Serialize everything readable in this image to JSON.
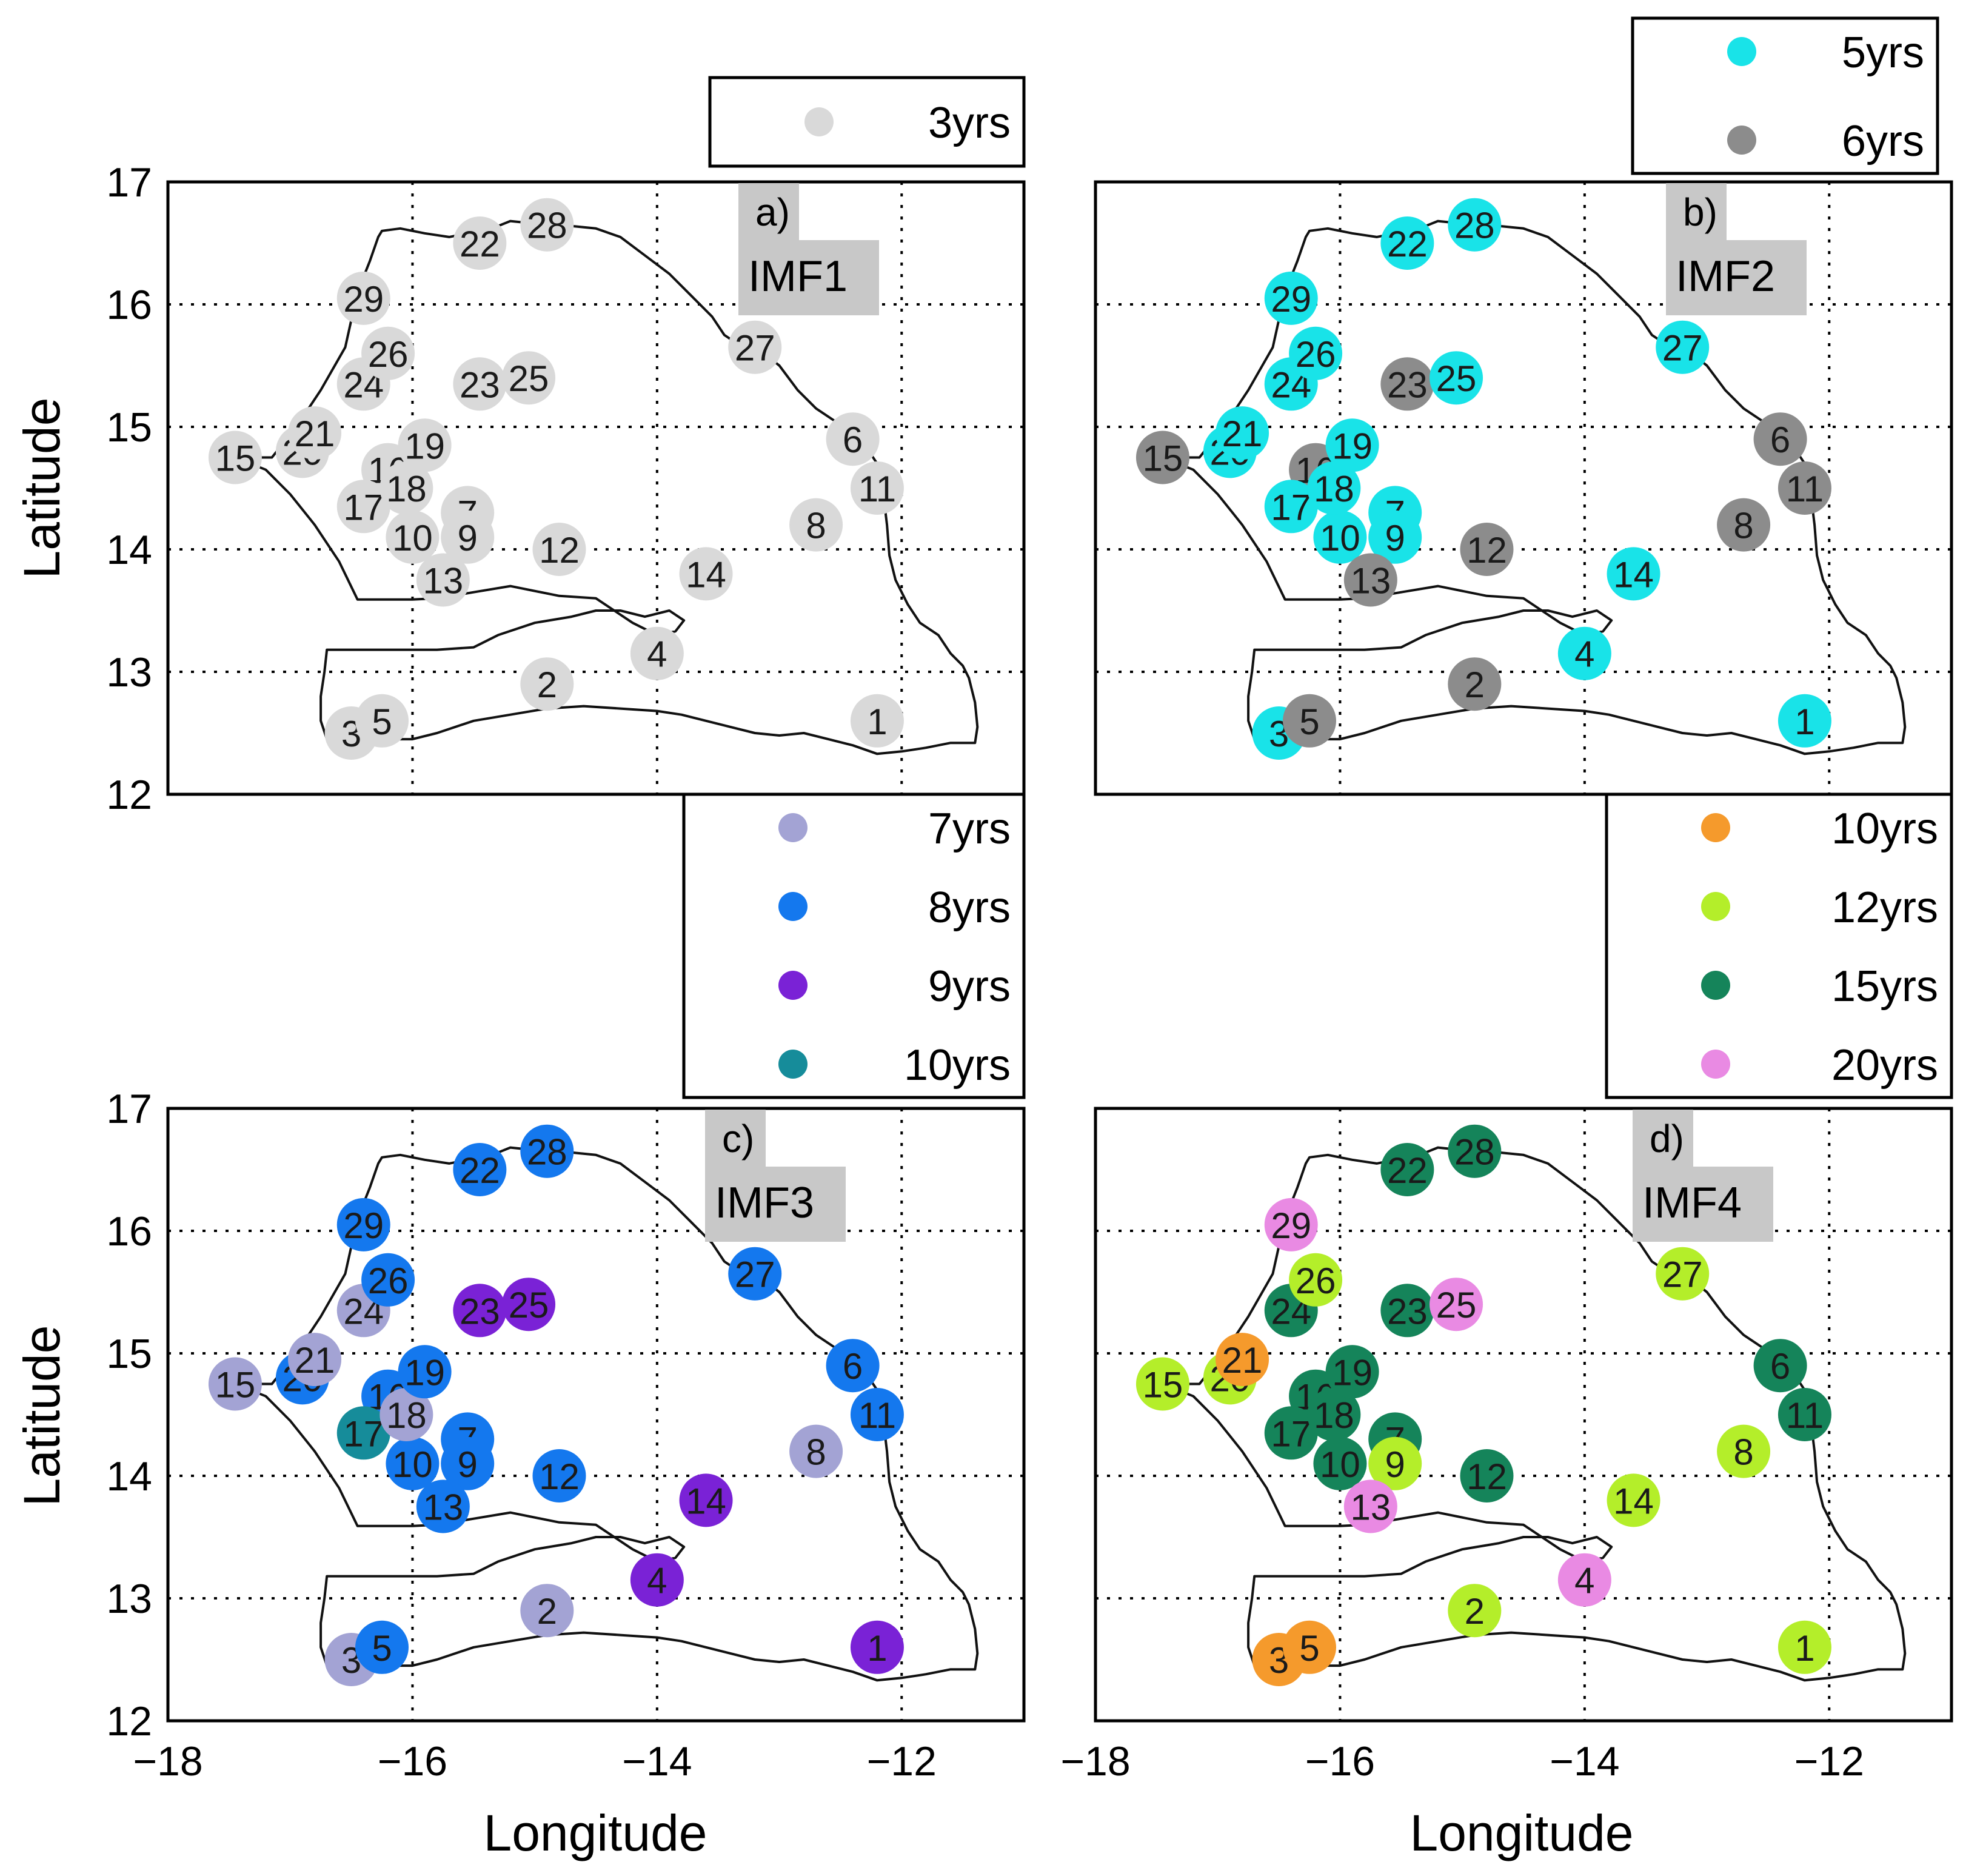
{
  "figure": {
    "axis_labels": {
      "y": "Latitude",
      "x": "Longitude"
    },
    "x_ticks": [
      -18,
      -16,
      -14,
      -12
    ],
    "y_ticks": [
      12,
      13,
      14,
      15,
      16,
      17
    ]
  },
  "chart_data": [
    {
      "type": "scatter",
      "panel_tag": "a)",
      "imf_label": "IMF1",
      "xlabel": "Longitude",
      "ylabel": "Latitude",
      "xlim": [
        -18,
        -11
      ],
      "ylim": [
        12,
        17
      ],
      "grid": true,
      "legend": [
        {
          "label": "3yrs",
          "color": "#d9d9d9"
        }
      ],
      "points": [
        {
          "id": "1",
          "lon": -12.2,
          "lat": 12.6,
          "period": "3yrs"
        },
        {
          "id": "2",
          "lon": -14.9,
          "lat": 12.9,
          "period": "3yrs"
        },
        {
          "id": "3",
          "lon": -16.5,
          "lat": 12.5,
          "period": "3yrs"
        },
        {
          "id": "4",
          "lon": -14.0,
          "lat": 13.15,
          "period": "3yrs"
        },
        {
          "id": "5",
          "lon": -16.25,
          "lat": 12.6,
          "period": "3yrs"
        },
        {
          "id": "6",
          "lon": -12.4,
          "lat": 14.9,
          "period": "3yrs"
        },
        {
          "id": "7",
          "lon": -15.55,
          "lat": 14.3,
          "period": "3yrs"
        },
        {
          "id": "8",
          "lon": -12.7,
          "lat": 14.2,
          "period": "3yrs"
        },
        {
          "id": "9",
          "lon": -15.55,
          "lat": 14.1,
          "period": "3yrs"
        },
        {
          "id": "10",
          "lon": -16.0,
          "lat": 14.1,
          "period": "3yrs"
        },
        {
          "id": "11",
          "lon": -12.2,
          "lat": 14.5,
          "period": "3yrs"
        },
        {
          "id": "12",
          "lon": -14.8,
          "lat": 14.0,
          "period": "3yrs"
        },
        {
          "id": "13",
          "lon": -15.75,
          "lat": 13.75,
          "period": "3yrs"
        },
        {
          "id": "14",
          "lon": -13.6,
          "lat": 13.8,
          "period": "3yrs"
        },
        {
          "id": "15",
          "lon": -17.45,
          "lat": 14.75,
          "period": "3yrs"
        },
        {
          "id": "16",
          "lon": -16.2,
          "lat": 14.65,
          "period": "3yrs"
        },
        {
          "id": "17",
          "lon": -16.4,
          "lat": 14.35,
          "period": "3yrs"
        },
        {
          "id": "18",
          "lon": -16.05,
          "lat": 14.5,
          "period": "3yrs"
        },
        {
          "id": "19",
          "lon": -15.9,
          "lat": 14.85,
          "period": "3yrs"
        },
        {
          "id": "20",
          "lon": -16.9,
          "lat": 14.8,
          "period": "3yrs"
        },
        {
          "id": "21",
          "lon": -16.8,
          "lat": 14.95,
          "period": "3yrs"
        },
        {
          "id": "22",
          "lon": -15.45,
          "lat": 16.5,
          "period": "3yrs"
        },
        {
          "id": "23",
          "lon": -15.45,
          "lat": 15.35,
          "period": "3yrs"
        },
        {
          "id": "24",
          "lon": -16.4,
          "lat": 15.35,
          "period": "3yrs"
        },
        {
          "id": "25",
          "lon": -15.05,
          "lat": 15.4,
          "period": "3yrs"
        },
        {
          "id": "26",
          "lon": -16.2,
          "lat": 15.6,
          "period": "3yrs"
        },
        {
          "id": "27",
          "lon": -13.2,
          "lat": 15.65,
          "period": "3yrs"
        },
        {
          "id": "28",
          "lon": -14.9,
          "lat": 16.65,
          "period": "3yrs"
        },
        {
          "id": "29",
          "lon": -16.4,
          "lat": 16.05,
          "period": "3yrs"
        }
      ]
    },
    {
      "type": "scatter",
      "panel_tag": "b)",
      "imf_label": "IMF2",
      "xlabel": "Longitude",
      "ylabel": "Latitude",
      "xlim": [
        -18,
        -11
      ],
      "ylim": [
        12,
        17
      ],
      "grid": true,
      "legend": [
        {
          "label": "5yrs",
          "color": "#19e3e8"
        },
        {
          "label": "6yrs",
          "color": "#8c8c8c"
        }
      ],
      "points": [
        {
          "id": "1",
          "lon": -12.2,
          "lat": 12.6,
          "period": "5yrs"
        },
        {
          "id": "2",
          "lon": -14.9,
          "lat": 12.9,
          "period": "6yrs"
        },
        {
          "id": "3",
          "lon": -16.5,
          "lat": 12.5,
          "period": "5yrs"
        },
        {
          "id": "4",
          "lon": -14.0,
          "lat": 13.15,
          "period": "5yrs"
        },
        {
          "id": "5",
          "lon": -16.25,
          "lat": 12.6,
          "period": "6yrs"
        },
        {
          "id": "6",
          "lon": -12.4,
          "lat": 14.9,
          "period": "6yrs"
        },
        {
          "id": "7",
          "lon": -15.55,
          "lat": 14.3,
          "period": "5yrs"
        },
        {
          "id": "8",
          "lon": -12.7,
          "lat": 14.2,
          "period": "6yrs"
        },
        {
          "id": "9",
          "lon": -15.55,
          "lat": 14.1,
          "period": "5yrs"
        },
        {
          "id": "10",
          "lon": -16.0,
          "lat": 14.1,
          "period": "5yrs"
        },
        {
          "id": "11",
          "lon": -12.2,
          "lat": 14.5,
          "period": "6yrs"
        },
        {
          "id": "12",
          "lon": -14.8,
          "lat": 14.0,
          "period": "6yrs"
        },
        {
          "id": "13",
          "lon": -15.75,
          "lat": 13.75,
          "period": "6yrs"
        },
        {
          "id": "14",
          "lon": -13.6,
          "lat": 13.8,
          "period": "5yrs"
        },
        {
          "id": "15",
          "lon": -17.45,
          "lat": 14.75,
          "period": "6yrs"
        },
        {
          "id": "16",
          "lon": -16.2,
          "lat": 14.65,
          "period": "6yrs"
        },
        {
          "id": "17",
          "lon": -16.4,
          "lat": 14.35,
          "period": "5yrs"
        },
        {
          "id": "18",
          "lon": -16.05,
          "lat": 14.5,
          "period": "5yrs"
        },
        {
          "id": "19",
          "lon": -15.9,
          "lat": 14.85,
          "period": "5yrs"
        },
        {
          "id": "20",
          "lon": -16.9,
          "lat": 14.8,
          "period": "5yrs"
        },
        {
          "id": "21",
          "lon": -16.8,
          "lat": 14.95,
          "period": "5yrs"
        },
        {
          "id": "22",
          "lon": -15.45,
          "lat": 16.5,
          "period": "5yrs"
        },
        {
          "id": "23",
          "lon": -15.45,
          "lat": 15.35,
          "period": "6yrs"
        },
        {
          "id": "24",
          "lon": -16.4,
          "lat": 15.35,
          "period": "5yrs"
        },
        {
          "id": "25",
          "lon": -15.05,
          "lat": 15.4,
          "period": "5yrs"
        },
        {
          "id": "26",
          "lon": -16.2,
          "lat": 15.6,
          "period": "5yrs"
        },
        {
          "id": "27",
          "lon": -13.2,
          "lat": 15.65,
          "period": "5yrs"
        },
        {
          "id": "28",
          "lon": -14.9,
          "lat": 16.65,
          "period": "5yrs"
        },
        {
          "id": "29",
          "lon": -16.4,
          "lat": 16.05,
          "period": "5yrs"
        }
      ]
    },
    {
      "type": "scatter",
      "panel_tag": "c)",
      "imf_label": "IMF3",
      "xlabel": "Longitude",
      "ylabel": "Latitude",
      "xlim": [
        -18,
        -11
      ],
      "ylim": [
        12,
        17
      ],
      "grid": true,
      "legend": [
        {
          "label": "7yrs",
          "color": "#a3a3d4"
        },
        {
          "label": "8yrs",
          "color": "#1478ee"
        },
        {
          "label": "9yrs",
          "color": "#7a22d6"
        },
        {
          "label": "10yrs",
          "color": "#168c9a"
        }
      ],
      "points": [
        {
          "id": "1",
          "lon": -12.2,
          "lat": 12.6,
          "period": "9yrs"
        },
        {
          "id": "2",
          "lon": -14.9,
          "lat": 12.9,
          "period": "7yrs"
        },
        {
          "id": "3",
          "lon": -16.5,
          "lat": 12.5,
          "period": "7yrs"
        },
        {
          "id": "4",
          "lon": -14.0,
          "lat": 13.15,
          "period": "9yrs"
        },
        {
          "id": "5",
          "lon": -16.25,
          "lat": 12.6,
          "period": "8yrs"
        },
        {
          "id": "6",
          "lon": -12.4,
          "lat": 14.9,
          "period": "8yrs"
        },
        {
          "id": "7",
          "lon": -15.55,
          "lat": 14.3,
          "period": "8yrs"
        },
        {
          "id": "8",
          "lon": -12.7,
          "lat": 14.2,
          "period": "7yrs"
        },
        {
          "id": "9",
          "lon": -15.55,
          "lat": 14.1,
          "period": "8yrs"
        },
        {
          "id": "10",
          "lon": -16.0,
          "lat": 14.1,
          "period": "8yrs"
        },
        {
          "id": "11",
          "lon": -12.2,
          "lat": 14.5,
          "period": "8yrs"
        },
        {
          "id": "12",
          "lon": -14.8,
          "lat": 14.0,
          "period": "8yrs"
        },
        {
          "id": "13",
          "lon": -15.75,
          "lat": 13.75,
          "period": "8yrs"
        },
        {
          "id": "14",
          "lon": -13.6,
          "lat": 13.8,
          "period": "9yrs"
        },
        {
          "id": "15",
          "lon": -17.45,
          "lat": 14.75,
          "period": "7yrs"
        },
        {
          "id": "16",
          "lon": -16.2,
          "lat": 14.65,
          "period": "8yrs"
        },
        {
          "id": "17",
          "lon": -16.4,
          "lat": 14.35,
          "period": "10yrs"
        },
        {
          "id": "18",
          "lon": -16.05,
          "lat": 14.5,
          "period": "7yrs"
        },
        {
          "id": "19",
          "lon": -15.9,
          "lat": 14.85,
          "period": "8yrs"
        },
        {
          "id": "20",
          "lon": -16.9,
          "lat": 14.8,
          "period": "8yrs"
        },
        {
          "id": "21",
          "lon": -16.8,
          "lat": 14.95,
          "period": "7yrs"
        },
        {
          "id": "22",
          "lon": -15.45,
          "lat": 16.5,
          "period": "8yrs"
        },
        {
          "id": "23",
          "lon": -15.45,
          "lat": 15.35,
          "period": "9yrs"
        },
        {
          "id": "24",
          "lon": -16.4,
          "lat": 15.35,
          "period": "7yrs"
        },
        {
          "id": "25",
          "lon": -15.05,
          "lat": 15.4,
          "period": "9yrs"
        },
        {
          "id": "26",
          "lon": -16.2,
          "lat": 15.6,
          "period": "8yrs"
        },
        {
          "id": "27",
          "lon": -13.2,
          "lat": 15.65,
          "period": "8yrs"
        },
        {
          "id": "28",
          "lon": -14.9,
          "lat": 16.65,
          "period": "8yrs"
        },
        {
          "id": "29",
          "lon": -16.4,
          "lat": 16.05,
          "period": "8yrs"
        }
      ]
    },
    {
      "type": "scatter",
      "panel_tag": "d)",
      "imf_label": "IMF4",
      "xlabel": "Longitude",
      "ylabel": "Latitude",
      "xlim": [
        -18,
        -11
      ],
      "ylim": [
        12,
        17
      ],
      "grid": true,
      "legend": [
        {
          "label": "10yrs",
          "color": "#f59a2c"
        },
        {
          "label": "12yrs",
          "color": "#b4ee2a"
        },
        {
          "label": "15yrs",
          "color": "#15845a"
        },
        {
          "label": "20yrs",
          "color": "#e98ae3"
        }
      ],
      "points": [
        {
          "id": "1",
          "lon": -12.2,
          "lat": 12.6,
          "period": "12yrs"
        },
        {
          "id": "2",
          "lon": -14.9,
          "lat": 12.9,
          "period": "12yrs"
        },
        {
          "id": "3",
          "lon": -16.5,
          "lat": 12.5,
          "period": "10yrs"
        },
        {
          "id": "4",
          "lon": -14.0,
          "lat": 13.15,
          "period": "20yrs"
        },
        {
          "id": "5",
          "lon": -16.25,
          "lat": 12.6,
          "period": "10yrs"
        },
        {
          "id": "6",
          "lon": -12.4,
          "lat": 14.9,
          "period": "15yrs"
        },
        {
          "id": "7",
          "lon": -15.55,
          "lat": 14.3,
          "period": "15yrs"
        },
        {
          "id": "8",
          "lon": -12.7,
          "lat": 14.2,
          "period": "12yrs"
        },
        {
          "id": "9",
          "lon": -15.55,
          "lat": 14.1,
          "period": "12yrs"
        },
        {
          "id": "10",
          "lon": -16.0,
          "lat": 14.1,
          "period": "15yrs"
        },
        {
          "id": "11",
          "lon": -12.2,
          "lat": 14.5,
          "period": "15yrs"
        },
        {
          "id": "12",
          "lon": -14.8,
          "lat": 14.0,
          "period": "15yrs"
        },
        {
          "id": "13",
          "lon": -15.75,
          "lat": 13.75,
          "period": "20yrs"
        },
        {
          "id": "14",
          "lon": -13.6,
          "lat": 13.8,
          "period": "12yrs"
        },
        {
          "id": "15",
          "lon": -17.45,
          "lat": 14.75,
          "period": "12yrs"
        },
        {
          "id": "16",
          "lon": -16.2,
          "lat": 14.65,
          "period": "15yrs"
        },
        {
          "id": "17",
          "lon": -16.4,
          "lat": 14.35,
          "period": "15yrs"
        },
        {
          "id": "18",
          "lon": -16.05,
          "lat": 14.5,
          "period": "15yrs"
        },
        {
          "id": "19",
          "lon": -15.9,
          "lat": 14.85,
          "period": "15yrs"
        },
        {
          "id": "20",
          "lon": -16.9,
          "lat": 14.8,
          "period": "12yrs"
        },
        {
          "id": "21",
          "lon": -16.8,
          "lat": 14.95,
          "period": "10yrs"
        },
        {
          "id": "22",
          "lon": -15.45,
          "lat": 16.5,
          "period": "15yrs"
        },
        {
          "id": "23",
          "lon": -15.45,
          "lat": 15.35,
          "period": "15yrs"
        },
        {
          "id": "24",
          "lon": -16.4,
          "lat": 15.35,
          "period": "15yrs"
        },
        {
          "id": "25",
          "lon": -15.05,
          "lat": 15.4,
          "period": "20yrs"
        },
        {
          "id": "26",
          "lon": -16.2,
          "lat": 15.6,
          "period": "12yrs"
        },
        {
          "id": "27",
          "lon": -13.2,
          "lat": 15.65,
          "period": "12yrs"
        },
        {
          "id": "28",
          "lon": -14.9,
          "lat": 16.65,
          "period": "15yrs"
        },
        {
          "id": "29",
          "lon": -16.4,
          "lat": 16.05,
          "period": "20yrs"
        }
      ]
    }
  ]
}
